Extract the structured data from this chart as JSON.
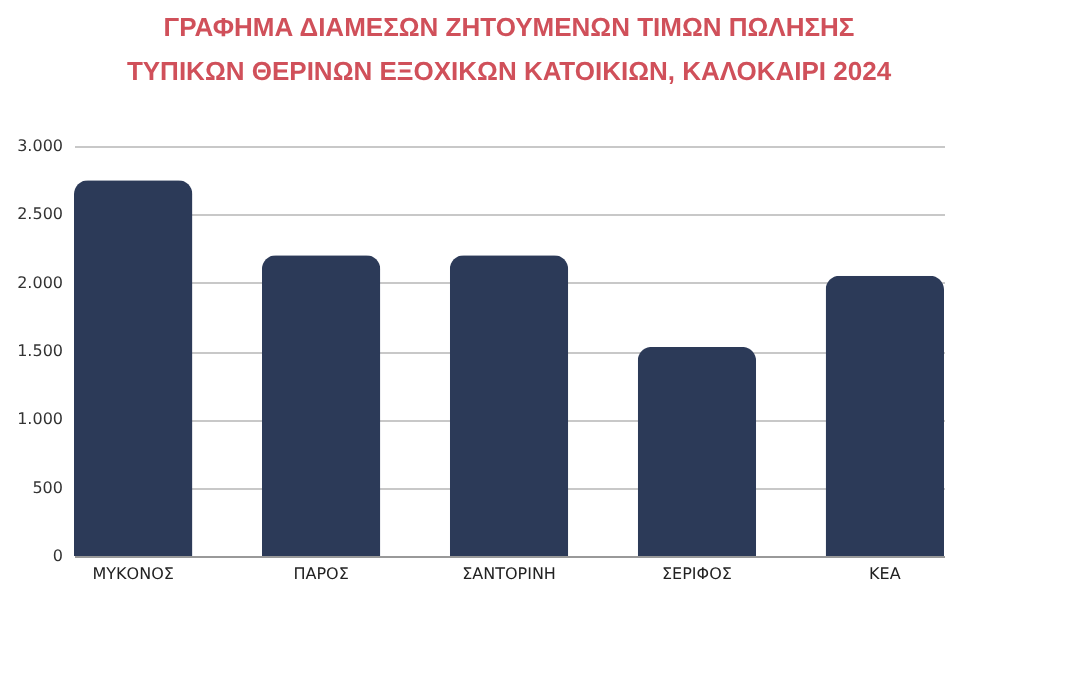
{
  "chart_data": {
    "type": "bar",
    "title": "ΓΡΑΦΗΜΑ ΔΙΑΜΕΣΩΝ ΖΗΤΟΥΜΕΝΩΝ ΤΙΜΩΝ ΠΩΛΗΣΗΣ\nΤΥΠΙΚΩΝ ΘΕΡΙΝΩΝ ΕΞΟΧΙΚΩΝ ΚΑΤΟΙΚΙΩΝ, ΚΑΛΟΚΑΙΡΙ 2024",
    "categories": [
      "ΜΥΚΟΝΟΣ",
      "ΠΑΡΟΣ",
      "ΣΑΝΤΟΡΙΝΗ",
      "ΣΕΡΙΦΟΣ",
      "ΚΕΑ"
    ],
    "values": [
      2750,
      2200,
      2200,
      1530,
      2050
    ],
    "color": "#2c3a58",
    "ylim": [
      0,
      3000
    ],
    "yticks": [
      0,
      {
        "value": 500,
        "label": "500"
      },
      {
        "value": 1000,
        "label": "1.000"
      },
      {
        "value": 1500,
        "label": "1.500"
      },
      {
        "value": 2000,
        "label": "2.000"
      },
      {
        "value": 2500,
        "label": "2.500"
      },
      {
        "value": 3000,
        "label": "3.000"
      }
    ],
    "grid": "y"
  }
}
